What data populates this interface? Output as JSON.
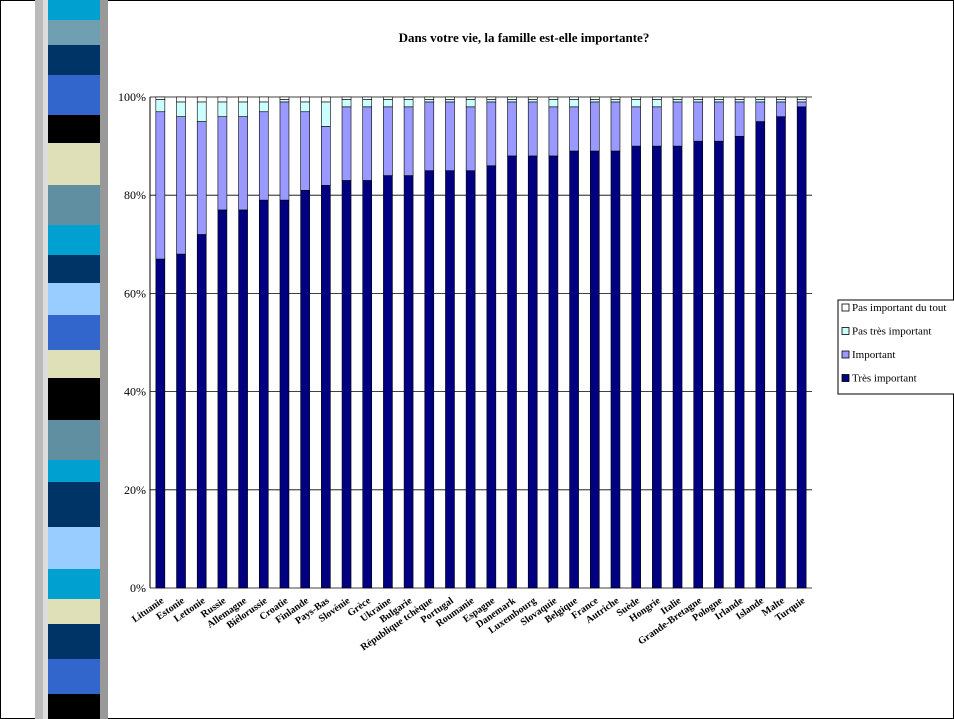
{
  "chart_data": {
    "type": "stacked_bar",
    "title": "Dans votre vie, la famille est-elle importante?",
    "categories": [
      "Lituanie",
      "Estonie",
      "Lettonie",
      "Russie",
      "Allemagne",
      "Biélorussie",
      "Croatie",
      "Finlande",
      "Pays-Bas",
      "Slovénie",
      "Grèce",
      "Ukraine",
      "Bulgarie",
      "République tchèque",
      "Portugal",
      "Roumanie",
      "Espagne",
      "Danemark",
      "Luxembourg",
      "Slovaquie",
      "Belgique",
      "France",
      "Autriche",
      "Suède",
      "Hongrie",
      "Italie",
      "Grande-Bretagne",
      "Pologne",
      "Irlande",
      "Islande",
      "Malte",
      "Turquie"
    ],
    "series": [
      {
        "name": "Très important",
        "color": "#000080",
        "values": [
          67,
          68,
          72,
          77,
          77,
          79,
          79,
          81,
          82,
          83,
          83,
          84,
          84,
          85,
          85,
          85,
          86,
          88,
          88,
          88,
          89,
          89,
          89,
          90,
          90,
          90,
          91,
          91,
          92,
          95,
          96,
          98
        ]
      },
      {
        "name": "Important",
        "color": "#9999ff",
        "values": [
          30,
          28,
          23,
          19,
          19,
          18,
          20,
          16,
          12,
          15,
          15,
          14,
          14,
          14,
          14,
          13,
          13,
          11,
          11,
          10,
          9,
          10,
          10,
          8,
          8,
          9,
          8,
          8,
          7,
          4,
          3,
          1
        ]
      },
      {
        "name": "Pas très important",
        "color": "#ccffff",
        "values": [
          2.5,
          3,
          4,
          3,
          3,
          2,
          0.5,
          2,
          5,
          1.5,
          1.5,
          1.5,
          1.5,
          0.5,
          0.5,
          1.5,
          0.5,
          0.5,
          0.5,
          1.5,
          1.5,
          0.5,
          0.5,
          1.5,
          1.5,
          0.5,
          0.5,
          0.5,
          0.5,
          0.5,
          0.5,
          0.5
        ]
      },
      {
        "name": "Pas important du tout",
        "color": "#ffffff",
        "values": [
          0.5,
          1,
          1,
          1,
          1,
          1,
          0.5,
          1,
          1,
          0.5,
          0.5,
          0.5,
          0.5,
          0.5,
          0.5,
          0.5,
          0.5,
          0.5,
          0.5,
          0.5,
          0.5,
          0.5,
          0.5,
          0.5,
          0.5,
          0.5,
          0.5,
          0.5,
          0.5,
          0.5,
          0.5,
          0.5
        ]
      }
    ],
    "ylim": [
      0,
      100
    ],
    "yticks": [
      {
        "value": 0,
        "label": "0%"
      },
      {
        "value": 20,
        "label": "20%"
      },
      {
        "value": 40,
        "label": "40%"
      },
      {
        "value": 60,
        "label": "60%"
      },
      {
        "value": 80,
        "label": "80%"
      },
      {
        "value": 100,
        "label": "100%"
      }
    ],
    "grid": true,
    "legend": "right"
  }
}
